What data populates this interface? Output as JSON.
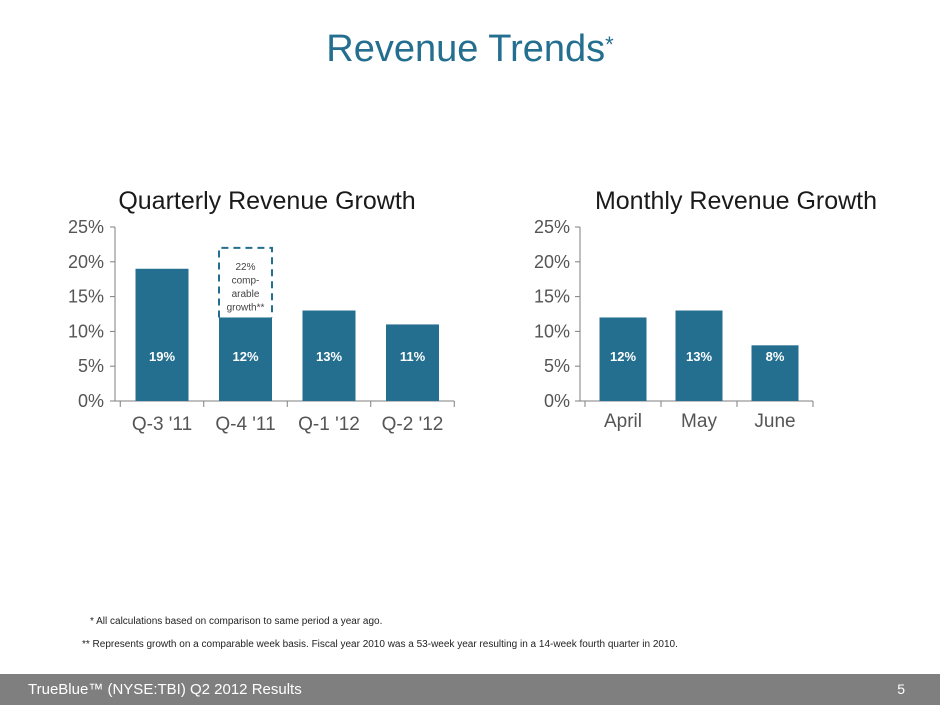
{
  "slide": {
    "title": "Revenue Trends",
    "title_mark": "*",
    "footnote1": "* All calculations based on comparison to same period a year ago.",
    "footnote2": "** Represents growth on a comparable week basis.  Fiscal year 2010 was a 53-week year resulting in a 14-week fourth quarter in 2010.",
    "footer_left": "TrueBlue™ (NYSE:TBI) Q2 2012 Results",
    "page_number": "5"
  },
  "colors": {
    "bar": "#246E8F",
    "title": "#246E8F",
    "axis": "#7f7f7f",
    "footer": "#7f7f7f"
  },
  "chart_data": [
    {
      "type": "bar",
      "title": "Quarterly Revenue Growth",
      "categories": [
        "Q-3 '11",
        "Q-4 '11",
        "Q-1 '12",
        "Q-2 '12"
      ],
      "values": [
        19,
        12,
        13,
        11
      ],
      "value_labels": [
        "19%",
        "12%",
        "13%",
        "11%"
      ],
      "yticks": [
        "0%",
        "5%",
        "10%",
        "15%",
        "20%",
        "25%"
      ],
      "ylim": [
        0,
        25
      ],
      "xlabel": "",
      "ylabel": "",
      "callout": {
        "category_index": 1,
        "value": 22,
        "lines": [
          "22%",
          "comp-",
          "arable",
          "growth**"
        ]
      }
    },
    {
      "type": "bar",
      "title": "Monthly  Revenue Growth",
      "categories": [
        "April",
        "May",
        "June"
      ],
      "values": [
        12,
        13,
        8
      ],
      "value_labels": [
        "12%",
        "13%",
        "8%"
      ],
      "yticks": [
        "0%",
        "5%",
        "10%",
        "15%",
        "20%",
        "25%"
      ],
      "ylim": [
        0,
        25
      ],
      "xlabel": "",
      "ylabel": ""
    }
  ]
}
